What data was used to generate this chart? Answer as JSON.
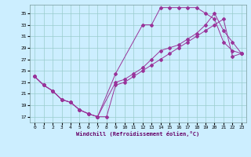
{
  "xlabel": "Windchill (Refroidissement éolien,°C)",
  "ylabel": "",
  "bg_color": "#cceeff",
  "line_color": "#993399",
  "grid_color": "#99cccc",
  "xlim": [
    -0.5,
    23.5
  ],
  "ylim": [
    16,
    36.5
  ],
  "xticks": [
    0,
    1,
    2,
    3,
    4,
    5,
    6,
    7,
    8,
    9,
    10,
    11,
    12,
    13,
    14,
    15,
    16,
    17,
    18,
    19,
    20,
    21,
    22,
    23
  ],
  "yticks": [
    17,
    19,
    21,
    23,
    25,
    27,
    29,
    31,
    33,
    35
  ],
  "line1_x": [
    0,
    1,
    2,
    3,
    4,
    5,
    6,
    7,
    9,
    12,
    13,
    14,
    15,
    16,
    17,
    18,
    19,
    20,
    21,
    22,
    23
  ],
  "line1_y": [
    24,
    22.5,
    21.5,
    20.0,
    19.5,
    18.2,
    17.5,
    17.0,
    24.5,
    33.0,
    33.0,
    36.0,
    36.0,
    36.0,
    36.0,
    36.0,
    35.0,
    34.0,
    30.0,
    28.5,
    28.0
  ],
  "line2_x": [
    0,
    1,
    2,
    3,
    4,
    5,
    6,
    7,
    8,
    9,
    10,
    11,
    12,
    13,
    14,
    15,
    16,
    17,
    18,
    19,
    20,
    21,
    22,
    23
  ],
  "line2_y": [
    24,
    22.5,
    21.5,
    20.0,
    19.5,
    18.2,
    17.5,
    17.0,
    17.0,
    22.5,
    23.0,
    24.0,
    25.0,
    26.0,
    27.0,
    28.0,
    29.0,
    30.0,
    31.0,
    32.0,
    33.0,
    34.0,
    27.5,
    28.0
  ],
  "line3_x": [
    0,
    1,
    2,
    3,
    4,
    5,
    6,
    7,
    9,
    10,
    11,
    12,
    13,
    14,
    15,
    16,
    17,
    18,
    19,
    20,
    21,
    22,
    23
  ],
  "line3_y": [
    24,
    22.5,
    21.5,
    20.0,
    19.5,
    18.2,
    17.5,
    17.0,
    23.0,
    23.5,
    24.5,
    25.5,
    27.0,
    28.5,
    29.0,
    29.5,
    30.5,
    31.5,
    33.0,
    35.0,
    32.0,
    30.0,
    28.0
  ]
}
